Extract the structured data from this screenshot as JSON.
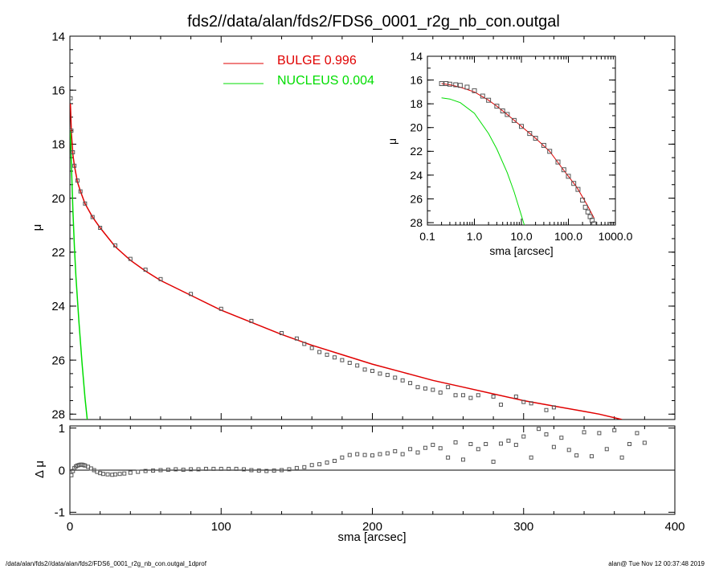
{
  "page": {
    "title": "fds2//data/alan/fds2/FDS6_0001_r2g_nb_con.outgal",
    "footer_left": "/data/alan/fds2//data/alan/fds2/FDS6_0001_r2g_nb_con.outgal_1dprof",
    "footer_right": "alan@  Tue Nov 12 00:37:48 2019"
  },
  "colors": {
    "bulge": "#e00000",
    "nucleus": "#00dd00",
    "data": "#555555",
    "axis": "#000000"
  },
  "chart_data": [
    {
      "id": "main",
      "type": "scatter",
      "title": "fds2//data/alan/fds2/FDS6_0001_r2g_nb_con.outgal",
      "xlabel": "",
      "ylabel": "μ",
      "xlim": [
        0,
        400
      ],
      "ylim": [
        28.2,
        14
      ],
      "yticks": [
        "14",
        "16",
        "18",
        "20",
        "22",
        "24",
        "26",
        "28"
      ],
      "legend": {
        "placement": "top-center",
        "entries": [
          {
            "label": "BULGE  0.996",
            "color": "#e00000"
          },
          {
            "label": "NUCLEUS  0.004",
            "color": "#00dd00"
          }
        ]
      },
      "series": [
        {
          "name": "BULGE",
          "kind": "line",
          "x": [
            0.3,
            1,
            2,
            3,
            5,
            7,
            10,
            15,
            20,
            30,
            40,
            50,
            60,
            80,
            100,
            120,
            140,
            160,
            180,
            200,
            220,
            240,
            260,
            280,
            300,
            320,
            340,
            350,
            365
          ],
          "y": [
            16.5,
            17.6,
            18.4,
            18.8,
            19.4,
            19.75,
            20.2,
            20.7,
            21.1,
            21.8,
            22.3,
            22.7,
            23.05,
            23.6,
            24.15,
            24.6,
            25.05,
            25.45,
            25.8,
            26.15,
            26.45,
            26.75,
            27.0,
            27.25,
            27.5,
            27.7,
            27.9,
            28.0,
            28.2
          ]
        },
        {
          "name": "NUCLEUS",
          "kind": "line",
          "x": [
            0.3,
            1,
            2,
            3,
            4,
            6,
            8,
            10,
            11.5
          ],
          "y": [
            17.5,
            18.8,
            20.5,
            21.8,
            22.9,
            24.6,
            26.1,
            27.4,
            28.2
          ]
        },
        {
          "name": "data",
          "kind": "points",
          "x": [
            0.5,
            1,
            2,
            3,
            5,
            7,
            10,
            15,
            20,
            30,
            40,
            50,
            60,
            80,
            100,
            120,
            140,
            150,
            155,
            160,
            165,
            170,
            175,
            180,
            185,
            190,
            195,
            200,
            205,
            210,
            215,
            220,
            225,
            230,
            235,
            240,
            245,
            250,
            255,
            260,
            265,
            270,
            280,
            285,
            295,
            300,
            305,
            315,
            320
          ],
          "y": [
            16.3,
            17.5,
            18.3,
            18.8,
            19.35,
            19.75,
            20.2,
            20.7,
            21.1,
            21.75,
            22.25,
            22.65,
            23.0,
            23.55,
            24.1,
            24.55,
            25.0,
            25.2,
            25.4,
            25.55,
            25.7,
            25.8,
            25.9,
            26.0,
            26.1,
            26.2,
            26.35,
            26.4,
            26.5,
            26.55,
            26.65,
            26.75,
            26.85,
            27.0,
            27.05,
            27.1,
            27.2,
            27.0,
            27.3,
            27.3,
            27.4,
            27.3,
            27.35,
            27.65,
            27.35,
            27.55,
            27.6,
            27.85,
            27.75
          ]
        }
      ]
    },
    {
      "id": "residual",
      "type": "scatter",
      "xlabel": "sma [arcsec]",
      "ylabel": "Δ μ",
      "xlim": [
        0,
        400
      ],
      "ylim": [
        -1.05,
        1.05
      ],
      "xticks": [
        "0",
        "100",
        "200",
        "300",
        "400"
      ],
      "yticks": [
        "-1",
        "0",
        "1"
      ],
      "series": [
        {
          "name": "residual",
          "kind": "points",
          "x": [
            1,
            2,
            3,
            4,
            5,
            6,
            7,
            8,
            9,
            10,
            12,
            14,
            16,
            18,
            20,
            22,
            25,
            28,
            30,
            33,
            36,
            40,
            45,
            50,
            55,
            60,
            65,
            70,
            75,
            80,
            85,
            90,
            95,
            100,
            105,
            110,
            115,
            120,
            125,
            130,
            135,
            140,
            145,
            150,
            155,
            160,
            165,
            170,
            175,
            180,
            185,
            190,
            195,
            200,
            205,
            210,
            215,
            220,
            225,
            230,
            235,
            240,
            245,
            250,
            255,
            260,
            265,
            270,
            275,
            280,
            285,
            290,
            295,
            300,
            305,
            310,
            315,
            320,
            325,
            330,
            335,
            340,
            345,
            350,
            355,
            360,
            365,
            370,
            375,
            380
          ],
          "y": [
            -0.12,
            -0.02,
            0.05,
            0.09,
            0.11,
            0.12,
            0.13,
            0.13,
            0.12,
            0.11,
            0.08,
            0.04,
            0.0,
            -0.04,
            -0.07,
            -0.09,
            -0.1,
            -0.11,
            -0.1,
            -0.09,
            -0.08,
            -0.06,
            -0.04,
            -0.02,
            -0.01,
            0.0,
            0.01,
            0.02,
            0.01,
            0.02,
            0.02,
            0.03,
            0.03,
            0.03,
            0.03,
            0.03,
            0.02,
            0.0,
            -0.01,
            -0.02,
            -0.01,
            0.0,
            0.02,
            0.05,
            0.07,
            0.12,
            0.14,
            0.18,
            0.22,
            0.3,
            0.36,
            0.38,
            0.36,
            0.35,
            0.38,
            0.4,
            0.45,
            0.38,
            0.5,
            0.42,
            0.53,
            0.6,
            0.52,
            0.3,
            0.66,
            0.25,
            0.62,
            0.5,
            0.62,
            0.2,
            0.63,
            0.7,
            0.6,
            0.8,
            0.3,
            0.98,
            0.85,
            0.55,
            0.77,
            0.48,
            0.35,
            0.9,
            0.33,
            0.88,
            0.5,
            0.95,
            0.3,
            0.62,
            0.88,
            0.65
          ]
        }
      ]
    },
    {
      "id": "inset",
      "type": "scatter",
      "xlabel": "sma [arcsec]",
      "ylabel": "μ",
      "xscale": "log",
      "xlim": [
        0.1,
        1000
      ],
      "ylim": [
        28.2,
        14
      ],
      "xticks": [
        "0.1",
        "1.0",
        "10.0",
        "100.0",
        "1000.0"
      ],
      "yticks": [
        "14",
        "16",
        "18",
        "20",
        "22",
        "24",
        "26",
        "28"
      ],
      "series": [
        {
          "name": "BULGE",
          "kind": "line",
          "x": [
            0.2,
            0.3,
            0.5,
            1,
            2,
            3,
            5,
            10,
            20,
            40,
            80,
            150,
            250,
            350
          ],
          "y": [
            16.3,
            16.4,
            16.6,
            17.0,
            17.7,
            18.2,
            18.9,
            19.9,
            20.9,
            22.0,
            23.6,
            25.0,
            26.5,
            27.6
          ]
        },
        {
          "name": "NUCLEUS",
          "kind": "line",
          "x": [
            0.2,
            0.3,
            0.5,
            1,
            2,
            3,
            5,
            7,
            10,
            11.5
          ],
          "y": [
            17.5,
            17.6,
            17.9,
            18.8,
            20.5,
            21.8,
            23.8,
            25.4,
            27.4,
            28.2
          ]
        },
        {
          "name": "data",
          "kind": "points",
          "x": [
            0.2,
            0.25,
            0.3,
            0.4,
            0.5,
            0.7,
            1,
            1.5,
            2,
            3,
            4,
            5,
            7,
            10,
            15,
            20,
            30,
            40,
            60,
            80,
            100,
            130,
            160,
            200,
            230,
            260,
            290,
            320,
            350
          ],
          "y": [
            16.3,
            16.3,
            16.35,
            16.4,
            16.45,
            16.6,
            16.9,
            17.35,
            17.7,
            18.2,
            18.6,
            18.9,
            19.4,
            19.9,
            20.5,
            20.9,
            21.5,
            22.0,
            22.9,
            23.55,
            24.1,
            24.7,
            25.2,
            26.1,
            26.7,
            27.1,
            27.5,
            27.8,
            28.1
          ]
        }
      ]
    }
  ]
}
